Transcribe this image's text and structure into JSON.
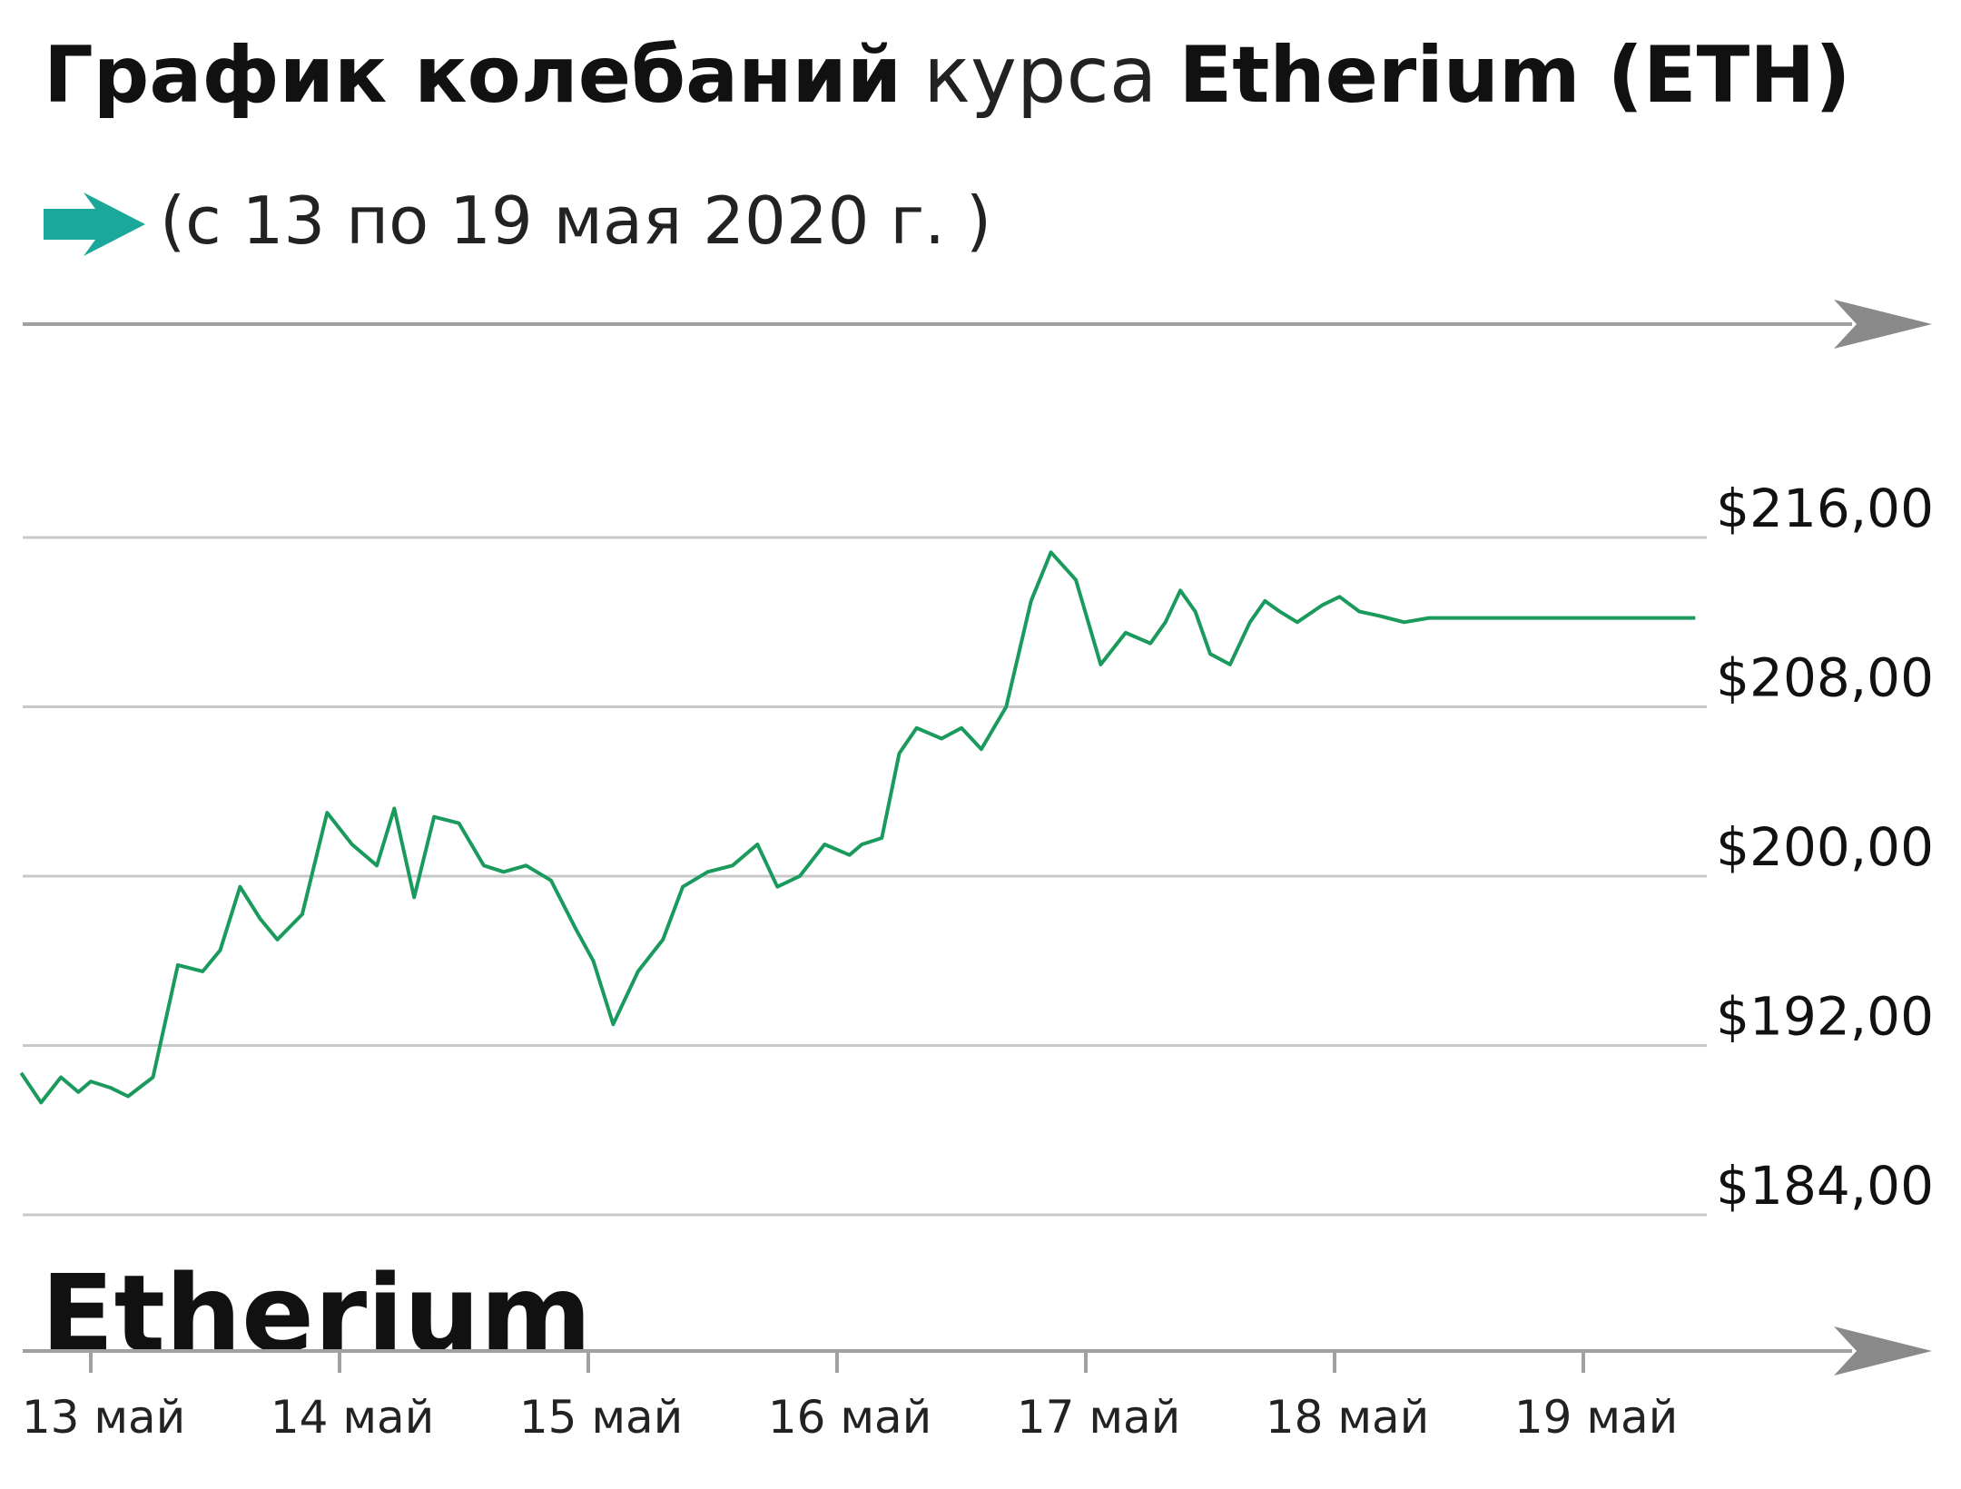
{
  "title": {
    "part1": "График колебаний",
    "part2": "курса",
    "part3": "Etherium (ETH)"
  },
  "subtitle": "(с 13 по 19 мая 2020 г. )",
  "brand_label": "Etherium",
  "colors": {
    "line": "#1a9a5c",
    "accent_arrow": "#1aa89a",
    "grid": "#c8c8c8",
    "axis": "#a0a0a0",
    "axis_arrow": "#8a8a8a"
  },
  "icons": {
    "subtitle_arrow": "teal-arrow-icon",
    "axis_arrow": "gray-arrow-icon"
  },
  "chart_data": {
    "type": "line",
    "title": "График колебаний курса Etherium (ETH)",
    "subtitle": "(с 13 по 19 мая 2020 г. )",
    "xlabel": "",
    "ylabel": "",
    "x_ticks": [
      "13 май",
      "14 май",
      "15 май",
      "16 май",
      "17 май",
      "18 май",
      "19 май"
    ],
    "y_ticks": [
      "$216,00",
      "$208,00",
      "$200,00",
      "$192,00",
      "$184,00"
    ],
    "y_tick_values": [
      216,
      208,
      200,
      192,
      184
    ],
    "ylim": [
      184,
      216
    ],
    "xlim": [
      -0.28,
      6.45
    ],
    "grid": true,
    "legend": "none",
    "series": [
      {
        "x": [
          -0.28,
          -0.2,
          -0.12,
          -0.05,
          0.0,
          0.08,
          0.15,
          0.25,
          0.35,
          0.45,
          0.52,
          0.6,
          0.68,
          0.75,
          0.85,
          0.95,
          1.05,
          1.15,
          1.22,
          1.3,
          1.38,
          1.48,
          1.58,
          1.66,
          1.75,
          1.85,
          1.95,
          2.02,
          2.1,
          2.2,
          2.3,
          2.38,
          2.48,
          2.58,
          2.68,
          2.76,
          2.85,
          2.95,
          3.05,
          3.1,
          3.18,
          3.25,
          3.32,
          3.42,
          3.5,
          3.58,
          3.68,
          3.78,
          3.86,
          3.96,
          4.06,
          4.16,
          4.26,
          4.32,
          4.38,
          4.44,
          4.5,
          4.58,
          4.66,
          4.72,
          4.78,
          4.85,
          4.95,
          5.02,
          5.1,
          5.18,
          5.28,
          5.38,
          5.48,
          5.58,
          5.68,
          5.78,
          5.86,
          5.95,
          6.05,
          6.15,
          6.25,
          6.35,
          6.45
        ],
        "y": [
          190.7,
          189.3,
          190.5,
          189.8,
          190.3,
          190.0,
          189.6,
          190.5,
          195.8,
          195.5,
          196.5,
          199.5,
          198.0,
          197.0,
          198.2,
          203.0,
          201.5,
          200.5,
          203.2,
          199.0,
          202.8,
          202.5,
          200.5,
          200.2,
          200.5,
          199.8,
          197.5,
          196.0,
          193.0,
          195.5,
          197.0,
          199.5,
          200.2,
          200.5,
          201.5,
          199.5,
          200.0,
          201.5,
          201.0,
          201.5,
          201.8,
          205.8,
          207.0,
          206.5,
          207.0,
          206.0,
          208.0,
          213.0,
          215.3,
          214.0,
          210.0,
          211.5,
          211.0,
          212.0,
          213.5,
          212.5,
          210.5,
          210.0,
          212.0,
          213.0,
          212.5,
          212.0,
          212.8,
          213.2,
          212.5,
          212.3,
          212.0,
          212.2,
          212.2,
          212.2,
          212.2,
          212.2,
          212.2,
          212.2,
          212.2,
          212.2,
          212.2,
          212.2,
          212.2
        ]
      }
    ]
  }
}
